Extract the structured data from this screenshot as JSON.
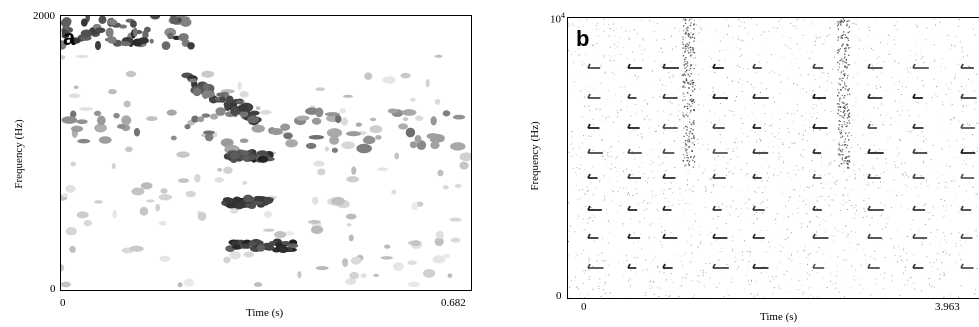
{
  "chart_data": [
    {
      "type": "heatmap",
      "panel_label": "a",
      "xlabel": "Time (s)",
      "ylabel": "Frequency (Hz)",
      "x_ticks": [
        "0",
        "0.682"
      ],
      "y_ticks": [
        "0",
        "2000"
      ],
      "xlim": [
        0,
        0.682
      ],
      "ylim": [
        0,
        2000
      ],
      "grid": false,
      "colormap": "grayscale"
    },
    {
      "type": "heatmap",
      "panel_label": "b",
      "xlabel": "Time (s)",
      "ylabel": "Frequency (Hz)",
      "x_ticks": [
        "0",
        "3.963"
      ],
      "y_ticks": [
        "0",
        "10^4"
      ],
      "y_top_base": "10",
      "y_top_exp": "4",
      "xlim": [
        0,
        3.963
      ],
      "ylim": [
        0,
        10000
      ],
      "grid": false,
      "colormap": "grayscale"
    }
  ]
}
